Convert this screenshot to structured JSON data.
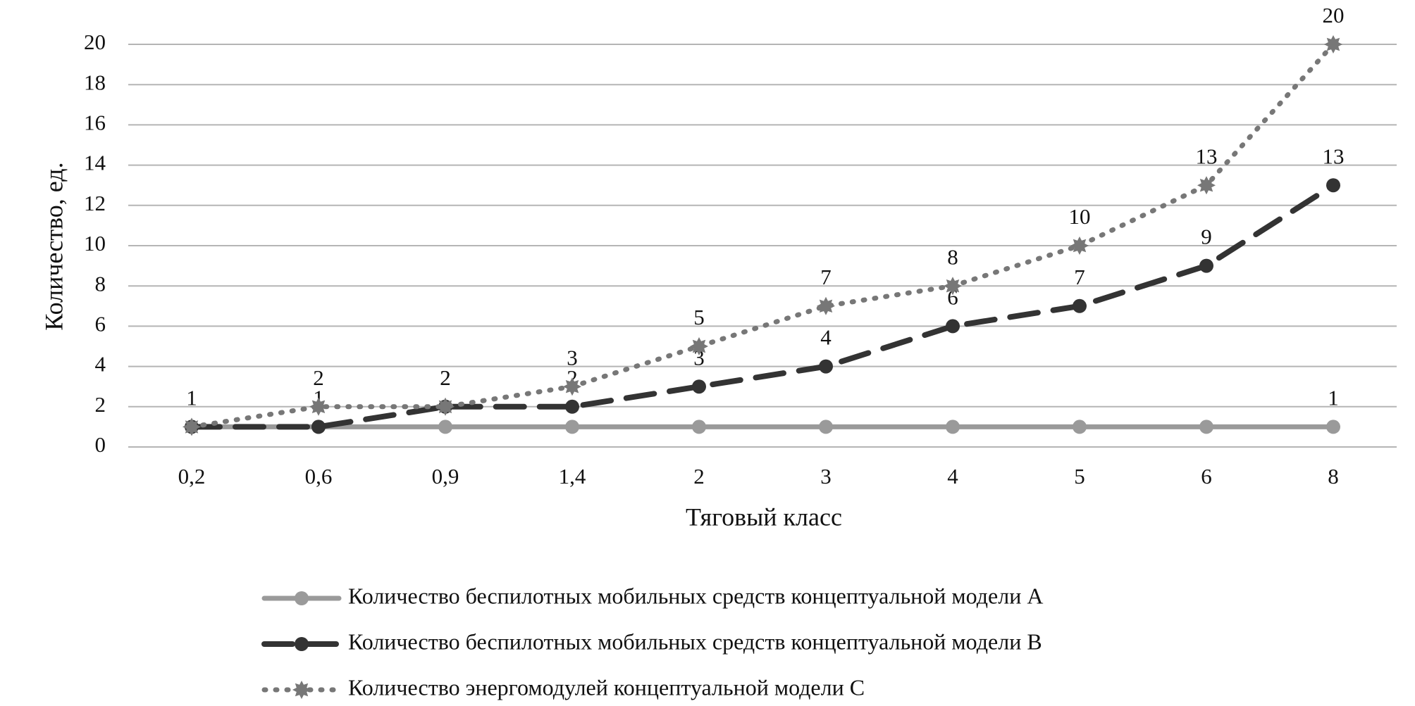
{
  "chart_data": {
    "type": "line",
    "x_label": "Тяговый класс",
    "y_label": "Количество, ед.",
    "categories": [
      "0,2",
      "0,6",
      "0,9",
      "1,4",
      "2",
      "3",
      "4",
      "5",
      "6",
      "8"
    ],
    "ylim": [
      0,
      20
    ],
    "yticks": [
      0,
      2,
      4,
      6,
      8,
      10,
      12,
      14,
      16,
      18,
      20
    ],
    "grid": true,
    "legend": "bottom",
    "series": [
      {
        "name": "Количество беспилотных мобильных средств концептуальной модели А",
        "color": "#9a9a9a",
        "line": "solid",
        "marker": "circle",
        "values": [
          1,
          1,
          1,
          1,
          1,
          1,
          1,
          1,
          1,
          1
        ],
        "value_labels": [
          "1",
          null,
          null,
          null,
          null,
          null,
          null,
          null,
          null,
          "1"
        ]
      },
      {
        "name": "Количество беспилотных мобильных средств концептуальной модели В",
        "color": "#333333",
        "line": "dashed",
        "marker": "circle",
        "values": [
          1,
          1,
          2,
          2,
          3,
          4,
          6,
          7,
          9,
          13
        ],
        "value_labels": [
          null,
          "1",
          "2",
          "2",
          "3",
          "4",
          "6",
          "7",
          "9",
          "13"
        ]
      },
      {
        "name": "Количество энергомодулей концептуальной модели С",
        "color": "#777777",
        "line": "dotted",
        "marker": "star",
        "values": [
          1,
          2,
          2,
          3,
          5,
          7,
          8,
          10,
          13,
          20
        ],
        "value_labels": [
          null,
          "2",
          "2",
          "3",
          "5",
          "7",
          "8",
          "10",
          "13",
          "20"
        ]
      }
    ]
  }
}
